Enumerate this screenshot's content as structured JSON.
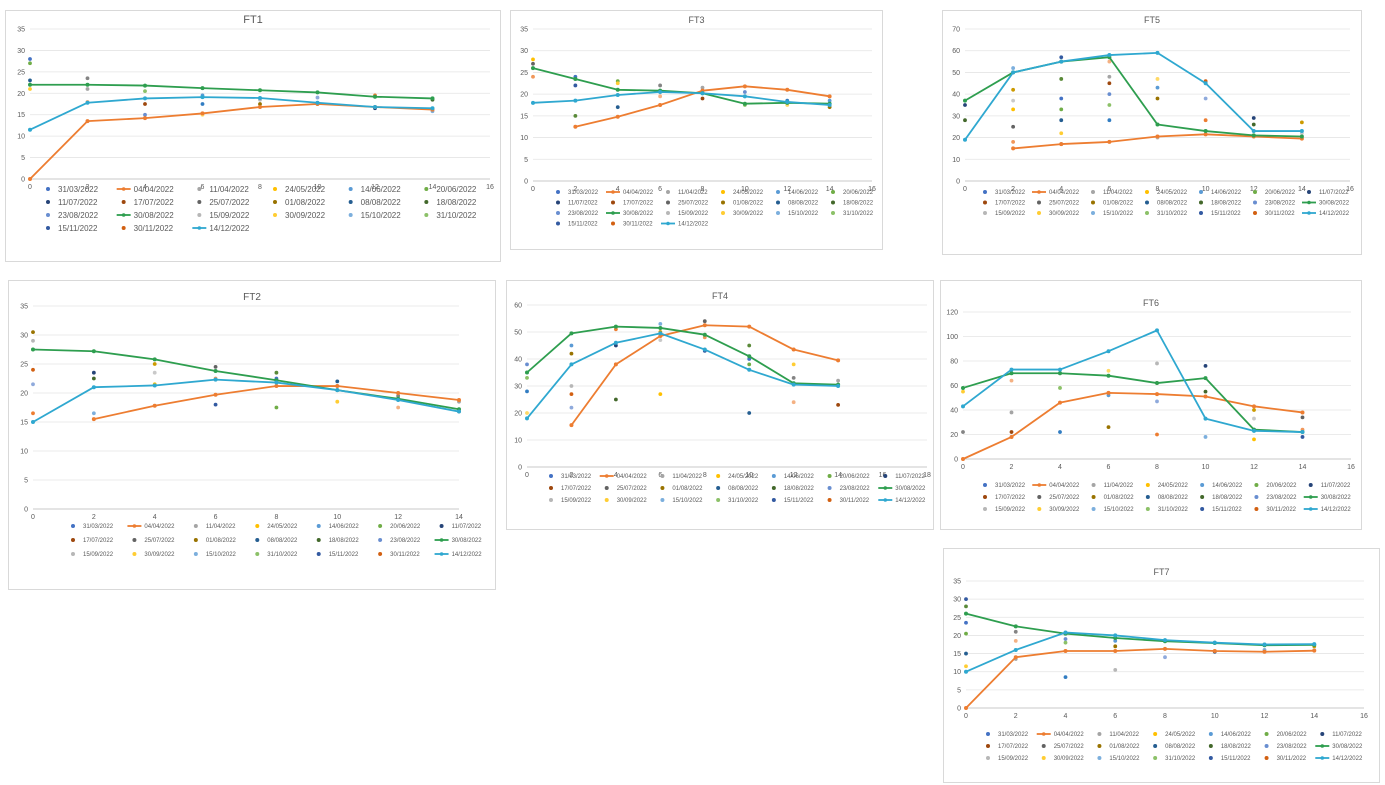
{
  "colors": {
    "palette": [
      "#4472C4",
      "#ED7D31",
      "#A5A5A5",
      "#FFC000",
      "#5B9BD5",
      "#70AD47",
      "#264478",
      "#9E480E",
      "#636363",
      "#997300",
      "#255E91",
      "#43682B",
      "#698ED0",
      "#F1975A",
      "#B7B7B7",
      "#FFCD33",
      "#7CAFDD",
      "#8CC168",
      "#335AA1",
      "#D26012",
      "#848484",
      "#CC9A00",
      "#327DC2",
      "#5A8A39",
      "#8FAADC",
      "#F4B183",
      "#C9C9C9",
      "#FFD966"
    ],
    "highlight_orange": "#ED7D31",
    "highlight_green": "#2E9E4F",
    "highlight_cyan": "#2FA8D0",
    "grid": "#e4e4e4",
    "axis": "#bfbfbf"
  },
  "legend_dates": [
    "31/03/2022",
    "04/04/2022",
    "11/04/2022",
    "24/05/2022",
    "14/06/2022",
    "20/06/2022",
    "11/07/2022",
    "17/07/2022",
    "25/07/2022",
    "01/08/2022",
    "08/08/2022",
    "18/08/2022",
    "23/08/2022",
    "30/08/2022",
    "15/09/2022",
    "30/09/2022",
    "15/10/2022",
    "31/10/2022",
    "15/11/2022",
    "30/11/2022",
    "14/12/2022"
  ],
  "chart_data": [
    {
      "type": "scatter",
      "title": "FT1",
      "xlim": [
        0,
        16
      ],
      "xticks": [
        0,
        2,
        4,
        6,
        8,
        10,
        12,
        14,
        16
      ],
      "ylim": [
        0,
        35
      ],
      "yticks": [
        0,
        5,
        10,
        15,
        20,
        25,
        30,
        35
      ],
      "legend_position": "bottom",
      "grid": true,
      "x": [
        0,
        2,
        4,
        6,
        8,
        10,
        12,
        14
      ],
      "highlight": [
        {
          "date_index": 1,
          "values": [
            0,
            13.5,
            14.2,
            15.3,
            16.8,
            17.5,
            16.8,
            16.2
          ]
        },
        {
          "date_index": 13,
          "values": [
            22,
            22,
            21.8,
            21.2,
            20.7,
            20.2,
            19.2,
            18.8
          ]
        },
        {
          "date_index": 20,
          "values": [
            11.5,
            17.8,
            18.8,
            19.1,
            18.9,
            17.8,
            16.8,
            16.5
          ]
        }
      ],
      "scatter_x": [
        0,
        0,
        0,
        0,
        2,
        2,
        2,
        4,
        4,
        4,
        6,
        6,
        6,
        8,
        8,
        10,
        10,
        12,
        12,
        14,
        14
      ],
      "scatter_y": [
        28,
        27,
        23,
        21,
        23.5,
        18,
        21,
        17.5,
        15,
        20.5,
        17.5,
        15,
        19.5,
        17.5,
        18.5,
        17.5,
        19,
        19.5,
        16.5,
        18.5,
        15.8
      ]
    },
    {
      "type": "scatter",
      "title": "FT3",
      "xlim": [
        0,
        16
      ],
      "xticks": [
        0,
        2,
        4,
        6,
        8,
        10,
        12,
        14,
        16
      ],
      "ylim": [
        0,
        35
      ],
      "yticks": [
        0,
        5,
        10,
        15,
        20,
        25,
        30,
        35
      ],
      "legend_position": "bottom",
      "grid": true,
      "x": [
        0,
        2,
        4,
        6,
        8,
        10,
        12,
        14
      ],
      "highlight": [
        {
          "date_index": 1,
          "values": [
            null,
            12.5,
            14.8,
            17.5,
            20.8,
            21.8,
            21,
            19.5
          ]
        },
        {
          "date_index": 13,
          "values": [
            26,
            23.5,
            21,
            20.8,
            20.2,
            17.8,
            18,
            17.8
          ]
        },
        {
          "date_index": 20,
          "values": [
            18,
            18.5,
            19.8,
            20.5,
            20.2,
            19.5,
            18.2,
            17.5
          ]
        }
      ],
      "scatter_x": [
        0,
        0,
        0,
        2,
        2,
        2,
        4,
        4,
        4,
        6,
        6,
        8,
        8,
        10,
        10,
        12,
        12,
        14,
        14
      ],
      "scatter_y": [
        28,
        27,
        24,
        22,
        15,
        24,
        23,
        17,
        22.5,
        22,
        19.5,
        21.5,
        19,
        20.5,
        17.5,
        18.5,
        17.5,
        18.5,
        17
      ]
    },
    {
      "type": "scatter",
      "title": "FT5",
      "xlim": [
        0,
        16
      ],
      "xticks": [
        0,
        2,
        4,
        6,
        8,
        10,
        12,
        14,
        16
      ],
      "ylim": [
        0,
        70
      ],
      "yticks": [
        0,
        10,
        20,
        30,
        40,
        50,
        60,
        70
      ],
      "legend_position": "bottom",
      "grid": true,
      "x": [
        0,
        2,
        4,
        6,
        8,
        10,
        12,
        14
      ],
      "highlight": [
        {
          "date_index": 1,
          "values": [
            null,
            15,
            17,
            18,
            20.5,
            21.5,
            20.5,
            19.5
          ]
        },
        {
          "date_index": 13,
          "values": [
            37,
            50,
            55,
            57,
            26,
            23,
            21,
            20.5
          ]
        },
        {
          "date_index": 20,
          "values": [
            19,
            50,
            55,
            58,
            59,
            45,
            23,
            23
          ]
        }
      ],
      "scatter_x": [
        0,
        0,
        2,
        2,
        2,
        2,
        2,
        2,
        4,
        4,
        4,
        4,
        4,
        4,
        4,
        6,
        6,
        6,
        6,
        6,
        6,
        8,
        8,
        8,
        8,
        10,
        10,
        10,
        12,
        12,
        12,
        14,
        14
      ],
      "scatter_y": [
        35,
        28,
        52,
        42,
        37,
        33,
        25,
        18,
        57,
        47,
        38,
        33,
        28,
        22,
        17,
        55,
        48,
        45,
        40,
        35,
        28,
        47,
        43,
        38,
        20,
        46,
        38,
        28,
        29,
        26,
        21,
        27,
        22
      ]
    },
    {
      "type": "scatter",
      "title": "FT2",
      "xlim": [
        0,
        14
      ],
      "xticks": [
        0,
        2,
        4,
        6,
        8,
        10,
        12,
        14
      ],
      "ylim": [
        0,
        35
      ],
      "yticks": [
        0,
        5,
        10,
        15,
        20,
        25,
        30,
        35
      ],
      "legend_position": "bottom",
      "grid": true,
      "x": [
        0,
        2,
        4,
        6,
        8,
        10,
        12,
        14
      ],
      "highlight": [
        {
          "date_index": 1,
          "values": [
            null,
            15.5,
            17.8,
            19.7,
            21.2,
            21.2,
            20,
            18.8
          ]
        },
        {
          "date_index": 13,
          "values": [
            27.5,
            27.2,
            25.8,
            23.8,
            22.2,
            20.5,
            19,
            17.2
          ]
        },
        {
          "date_index": 20,
          "values": [
            15,
            21,
            21.3,
            22.3,
            21.8,
            20.5,
            18.8,
            16.8
          ]
        }
      ],
      "scatter_x": [
        0,
        0,
        0,
        0,
        0,
        2,
        2,
        2,
        4,
        4,
        4,
        6,
        6,
        6,
        8,
        8,
        8,
        10,
        10,
        12,
        12,
        14,
        14
      ],
      "scatter_y": [
        30.5,
        29,
        24,
        21.5,
        16.5,
        23.5,
        22.5,
        16.5,
        25,
        23.5,
        21.5,
        24.5,
        22.5,
        18,
        23.5,
        22.5,
        17.5,
        22,
        18.5,
        19.5,
        17.5,
        18.5,
        16.8
      ]
    },
    {
      "type": "scatter",
      "title": "FT4",
      "xlim": [
        0,
        18
      ],
      "xticks": [
        0,
        2,
        4,
        6,
        8,
        10,
        12,
        14,
        16,
        18
      ],
      "ylim": [
        0,
        60
      ],
      "yticks": [
        0,
        10,
        20,
        30,
        40,
        50,
        60
      ],
      "legend_position": "bottom",
      "grid": true,
      "x": [
        0,
        2,
        4,
        6,
        8,
        10,
        12,
        14
      ],
      "highlight": [
        {
          "date_index": 1,
          "values": [
            null,
            15.5,
            38,
            48.5,
            52.5,
            52,
            43.5,
            39.5
          ]
        },
        {
          "date_index": 13,
          "values": [
            35,
            49.5,
            52,
            51.5,
            49,
            41,
            31,
            30.5
          ]
        },
        {
          "date_index": 20,
          "values": [
            18,
            38,
            46,
            49.5,
            43.5,
            36,
            30.5,
            30
          ]
        }
      ],
      "scatter_x": [
        0,
        0,
        0,
        0,
        2,
        2,
        2,
        2,
        2,
        4,
        4,
        4,
        6,
        6,
        6,
        6,
        8,
        8,
        8,
        10,
        10,
        10,
        10,
        12,
        12,
        12,
        14,
        14
      ],
      "scatter_y": [
        38,
        33,
        28,
        20,
        45,
        42,
        30,
        27,
        22,
        51,
        45,
        25,
        53,
        50,
        47,
        27,
        54,
        48,
        43,
        45,
        40,
        38,
        20,
        38,
        33,
        24,
        32,
        23
      ]
    },
    {
      "type": "scatter",
      "title": "FT6",
      "xlim": [
        0,
        16
      ],
      "xticks": [
        0,
        2,
        4,
        6,
        8,
        10,
        12,
        14,
        16
      ],
      "ylim": [
        0,
        120
      ],
      "yticks": [
        0,
        20,
        40,
        60,
        80,
        100,
        120
      ],
      "legend_position": "bottom",
      "grid": true,
      "x": [
        0,
        2,
        4,
        6,
        8,
        10,
        12,
        14
      ],
      "highlight": [
        {
          "date_index": 1,
          "values": [
            0,
            18,
            46,
            54,
            53,
            51,
            43,
            38
          ]
        },
        {
          "date_index": 13,
          "values": [
            58,
            70,
            70,
            68,
            62,
            66,
            24,
            22
          ]
        },
        {
          "date_index": 20,
          "values": [
            43,
            73,
            73,
            88,
            105,
            33,
            23,
            22
          ]
        }
      ],
      "scatter_x": [
        0,
        0,
        2,
        2,
        2,
        4,
        4,
        4,
        6,
        6,
        6,
        8,
        8,
        8,
        8,
        10,
        10,
        10,
        12,
        12,
        12,
        14,
        14,
        14
      ],
      "scatter_y": [
        55,
        22,
        64,
        38,
        22,
        70,
        58,
        22,
        72,
        52,
        26,
        78,
        62,
        47,
        20,
        76,
        55,
        18,
        40,
        33,
        16,
        34,
        24,
        18
      ]
    },
    {
      "type": "scatter",
      "title": "FT7",
      "xlim": [
        0,
        16
      ],
      "xticks": [
        0,
        2,
        4,
        6,
        8,
        10,
        12,
        14,
        16
      ],
      "ylim": [
        0,
        35
      ],
      "yticks": [
        0,
        5,
        10,
        15,
        20,
        25,
        30,
        35
      ],
      "legend_position": "bottom",
      "grid": true,
      "x": [
        0,
        2,
        4,
        6,
        8,
        10,
        12,
        14
      ],
      "highlight": [
        {
          "date_index": 1,
          "values": [
            0,
            14,
            15.7,
            15.7,
            16.3,
            15.7,
            15.5,
            15.8
          ]
        },
        {
          "date_index": 13,
          "values": [
            26,
            22.5,
            20.5,
            19.3,
            18.4,
            17.9,
            17.3,
            17.4
          ]
        },
        {
          "date_index": 20,
          "values": [
            10,
            16,
            20.8,
            20,
            18.7,
            18,
            17.5,
            17.6
          ]
        }
      ],
      "scatter_x": [
        0,
        0,
        0,
        0,
        0,
        0,
        2,
        2,
        2,
        4,
        4,
        4,
        4,
        6,
        6,
        6,
        6,
        8,
        8,
        10,
        10,
        12,
        12,
        14,
        14
      ],
      "scatter_y": [
        30,
        28,
        23.5,
        20.5,
        15,
        11.5,
        21,
        18.5,
        13.5,
        20.5,
        19,
        18,
        8.5,
        20,
        18.5,
        17,
        10.5,
        18.5,
        14,
        18,
        15.5,
        17.5,
        16,
        17,
        16
      ]
    }
  ]
}
